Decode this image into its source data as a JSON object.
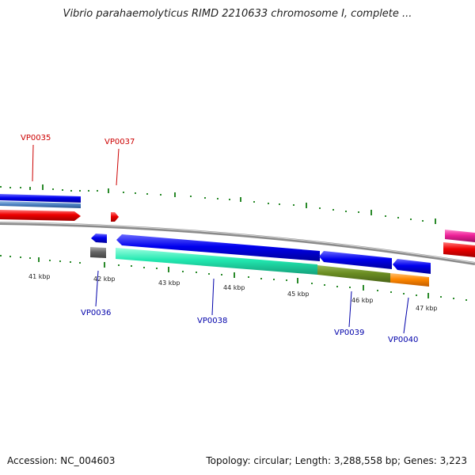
{
  "title": "Vibrio parahaemolyticus RIMD 2210633 chromosome I, complete ...",
  "footer": {
    "accession": "Accession: NC_004603",
    "summary": "Topology: circular; Length: 3,288,558 bp; Genes: 3,223"
  },
  "scale_labels": [
    "41 kbp",
    "42 kbp",
    "43 kbp",
    "44 kbp",
    "45 kbp",
    "46 kbp",
    "47 kbp"
  ],
  "genes_top": [
    "VP0035",
    "VP0037"
  ],
  "genes_bottom": [
    "VP0036",
    "VP0038",
    "VP0039",
    "VP0040"
  ],
  "colors": {
    "label_top": "#cc0000",
    "label_bottom": "#0000aa",
    "tick": "#2a8a2a",
    "backbone": "#8a8a8a",
    "gene_blue": "#0000ee",
    "gene_red": "#ee0000",
    "gene_teal": "#22ddaa",
    "gene_olive": "#6b8e23",
    "gene_orange": "#ff8800",
    "gene_gray": "#666666",
    "gene_pink": "#ee2299"
  }
}
